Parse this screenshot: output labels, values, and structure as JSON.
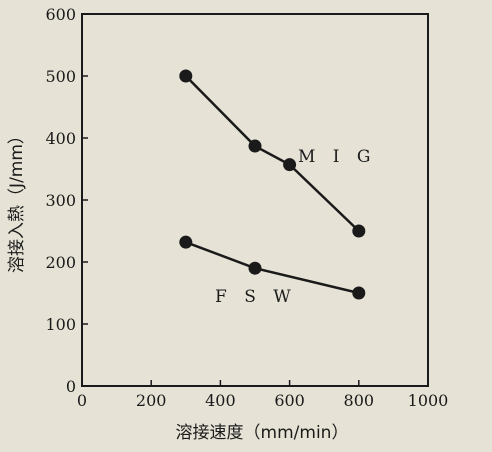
{
  "chart_data": {
    "type": "line",
    "xlabel": "溶接速度（mm/min）",
    "ylabel": "溶接入熱（J/mm）",
    "xlim": [
      0,
      1000
    ],
    "ylim": [
      0,
      600
    ],
    "xticks": [
      0,
      200,
      400,
      600,
      800,
      1000
    ],
    "yticks": [
      0,
      100,
      200,
      300,
      400,
      500,
      600
    ],
    "grid": false,
    "series": [
      {
        "name": "M I G",
        "x": [
          300,
          500,
          600,
          800
        ],
        "y": [
          500,
          387,
          357,
          250
        ]
      },
      {
        "name": "F S W",
        "x": [
          300,
          500,
          800
        ],
        "y": [
          232,
          190,
          150
        ]
      }
    ],
    "colors": {
      "line": "#1a1a1a",
      "marker": "#1a1a1a",
      "background": "#e6e3d6"
    }
  }
}
